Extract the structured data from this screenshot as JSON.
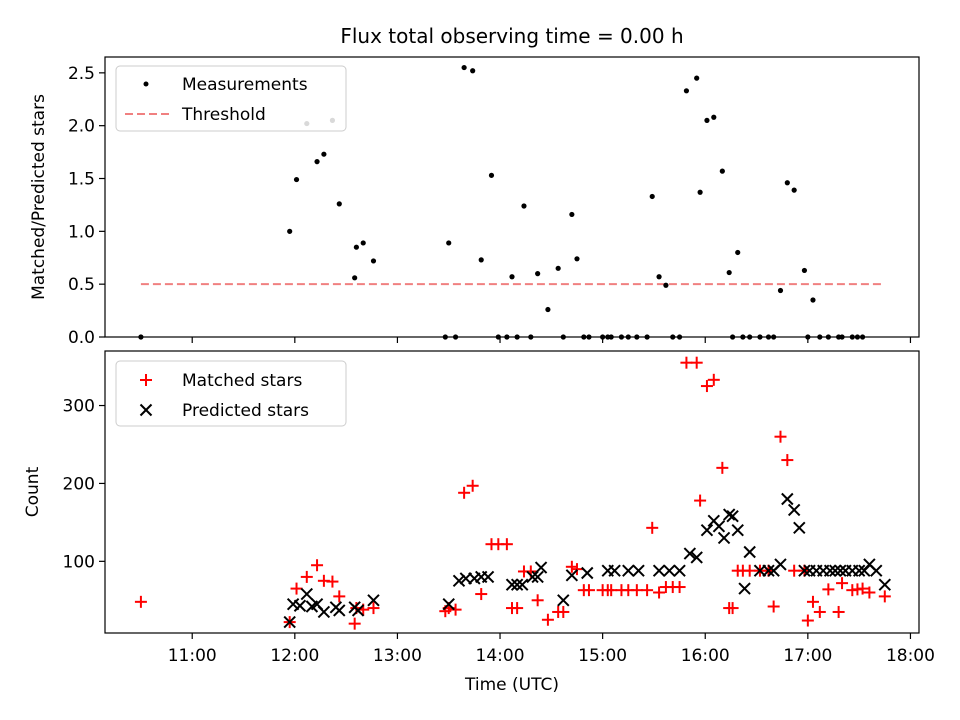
{
  "figure": {
    "title": "Flux total observing time = 0.00 h"
  },
  "chart_data": [
    {
      "type": "scatter",
      "title": "Flux total observing time = 0.00 h",
      "xlabel": "",
      "ylabel": "Matched/Predicted stars",
      "xlim": [
        "10:09",
        "18:05"
      ],
      "ylim": [
        0,
        2.65
      ],
      "yticks": [
        0,
        0.5,
        1.0,
        1.5,
        2.0,
        2.5
      ],
      "ytick_labels": [
        "0.0",
        "0.5",
        "1.0",
        "1.5",
        "2.0",
        "2.5"
      ],
      "legend_position": "top-left",
      "threshold": {
        "name": "Threshold",
        "value": 0.5,
        "x_range": [
          "10:30",
          "17:45"
        ],
        "color": "#f08080"
      },
      "series": [
        {
          "name": "Measurements",
          "color": "#000000",
          "x": [
            "10:30",
            "11:57",
            "12:01",
            "12:07",
            "12:13",
            "12:17",
            "12:22",
            "12:26",
            "12:35",
            "12:36",
            "12:40",
            "12:46",
            "13:28",
            "13:30",
            "13:34",
            "13:39",
            "13:44",
            "13:49",
            "13:55",
            "13:59",
            "14:04",
            "14:07",
            "14:10",
            "14:14",
            "14:18",
            "14:22",
            "14:28",
            "14:34",
            "14:37",
            "14:42",
            "14:45",
            "14:49",
            "14:52",
            "15:00",
            "15:03",
            "15:05",
            "15:11",
            "15:15",
            "15:20",
            "15:26",
            "15:29",
            "15:33",
            "15:37",
            "15:41",
            "15:45",
            "15:49",
            "15:55",
            "15:57",
            "16:01",
            "16:05",
            "16:10",
            "16:14",
            "16:16",
            "16:19",
            "16:22",
            "16:26",
            "16:32",
            "16:37",
            "16:40",
            "16:44",
            "16:48",
            "16:52",
            "16:58",
            "17:00",
            "17:03",
            "17:07",
            "17:12",
            "17:18",
            "17:20",
            "17:26",
            "17:29",
            "17:32"
          ],
          "y": [
            0,
            1.0,
            1.49,
            2.02,
            1.66,
            1.73,
            2.05,
            1.26,
            0.56,
            0.85,
            0.89,
            0.72,
            0,
            0.89,
            0,
            2.55,
            2.52,
            0.73,
            1.53,
            0,
            0,
            0.57,
            0,
            1.24,
            0,
            0.6,
            0.26,
            0.65,
            0,
            1.16,
            0.74,
            0,
            0,
            0,
            0,
            0,
            0,
            0,
            0,
            0,
            1.33,
            0.57,
            0.49,
            0,
            0,
            2.33,
            2.45,
            1.37,
            2.05,
            2.08,
            1.57,
            0.61,
            0,
            0.8,
            0,
            0,
            0,
            0,
            0,
            0.44,
            1.46,
            1.39,
            0.63,
            0,
            0.35,
            0,
            0,
            0,
            0,
            0,
            0,
            0
          ]
        }
      ]
    },
    {
      "type": "scatter",
      "title": "",
      "xlabel": "Time (UTC)",
      "ylabel": "Count",
      "xlim": [
        "10:09",
        "18:05"
      ],
      "ylim": [
        8,
        370
      ],
      "yticks": [
        100,
        200,
        300
      ],
      "ytick_labels": [
        "100",
        "200",
        "300"
      ],
      "xticks": [
        "11:00",
        "12:00",
        "13:00",
        "14:00",
        "15:00",
        "16:00",
        "17:00",
        "18:00"
      ],
      "xtick_labels": [
        "11:00",
        "12:00",
        "13:00",
        "14:00",
        "15:00",
        "16:00",
        "17:00",
        "18:00"
      ],
      "legend_position": "top-left",
      "series": [
        {
          "name": "Matched stars",
          "marker": "plus",
          "color": "#ff0000",
          "x": [
            "10:30",
            "11:57",
            "12:01",
            "12:07",
            "12:13",
            "12:17",
            "12:22",
            "12:26",
            "12:35",
            "12:36",
            "12:40",
            "12:46",
            "13:28",
            "13:30",
            "13:34",
            "13:39",
            "13:44",
            "13:49",
            "13:55",
            "13:59",
            "14:04",
            "14:07",
            "14:10",
            "14:14",
            "14:18",
            "14:22",
            "14:28",
            "14:34",
            "14:37",
            "14:42",
            "14:45",
            "14:49",
            "14:52",
            "15:00",
            "15:03",
            "15:05",
            "15:11",
            "15:15",
            "15:20",
            "15:26",
            "15:29",
            "15:33",
            "15:37",
            "15:41",
            "15:45",
            "15:49",
            "15:55",
            "15:57",
            "16:01",
            "16:05",
            "16:10",
            "16:14",
            "16:16",
            "16:19",
            "16:22",
            "16:26",
            "16:32",
            "16:37",
            "16:40",
            "16:44",
            "16:48",
            "16:52",
            "16:58",
            "17:00",
            "17:03",
            "17:07",
            "17:12",
            "17:18",
            "17:20",
            "17:26",
            "17:29",
            "17:32",
            "17:36",
            "17:45"
          ],
          "y": [
            48,
            22,
            65,
            80,
            95,
            75,
            74,
            55,
            20,
            40,
            38,
            40,
            36,
            40,
            38,
            188,
            197,
            58,
            122,
            122,
            122,
            40,
            40,
            87,
            87,
            50,
            25,
            35,
            35,
            93,
            90,
            63,
            63,
            63,
            63,
            63,
            63,
            63,
            63,
            63,
            143,
            60,
            67,
            67,
            67,
            355,
            355,
            178,
            325,
            333,
            220,
            40,
            40,
            88,
            88,
            88,
            88,
            88,
            42,
            260,
            230,
            88,
            88,
            24,
            48,
            35,
            64,
            35,
            72,
            63,
            64,
            65,
            60,
            55
          ]
        },
        {
          "name": "Predicted stars",
          "marker": "x",
          "color": "#000000",
          "x": [
            "11:57",
            "11:59",
            "12:03",
            "12:07",
            "12:10",
            "12:13",
            "12:17",
            "12:24",
            "12:26",
            "12:35",
            "12:37",
            "12:46",
            "13:30",
            "13:36",
            "13:40",
            "13:45",
            "13:49",
            "13:53",
            "14:07",
            "14:10",
            "14:13",
            "14:19",
            "14:22",
            "14:24",
            "14:37",
            "14:42",
            "14:51",
            "15:03",
            "15:07",
            "15:15",
            "15:21",
            "15:33",
            "15:39",
            "15:45",
            "15:51",
            "15:55",
            "16:01",
            "16:05",
            "16:08",
            "16:11",
            "16:14",
            "16:16",
            "16:19",
            "16:23",
            "16:26",
            "16:32",
            "16:37",
            "16:40",
            "16:44",
            "16:48",
            "16:52",
            "16:55",
            "16:58",
            "17:01",
            "17:05",
            "17:09",
            "17:13",
            "17:16",
            "17:19",
            "17:22",
            "17:26",
            "17:30",
            "17:33",
            "17:36",
            "17:40",
            "17:45"
          ],
          "y": [
            22,
            45,
            43,
            58,
            42,
            45,
            35,
            41,
            37,
            41,
            37,
            50,
            45,
            75,
            78,
            78,
            80,
            80,
            70,
            70,
            70,
            80,
            80,
            92,
            50,
            82,
            85,
            88,
            88,
            88,
            88,
            88,
            88,
            88,
            110,
            105,
            140,
            152,
            145,
            130,
            160,
            158,
            140,
            65,
            112,
            88,
            88,
            88,
            96,
            180,
            166,
            143,
            88,
            88,
            88,
            88,
            88,
            88,
            88,
            88,
            88,
            88,
            88,
            96,
            88,
            70
          ]
        }
      ]
    }
  ]
}
